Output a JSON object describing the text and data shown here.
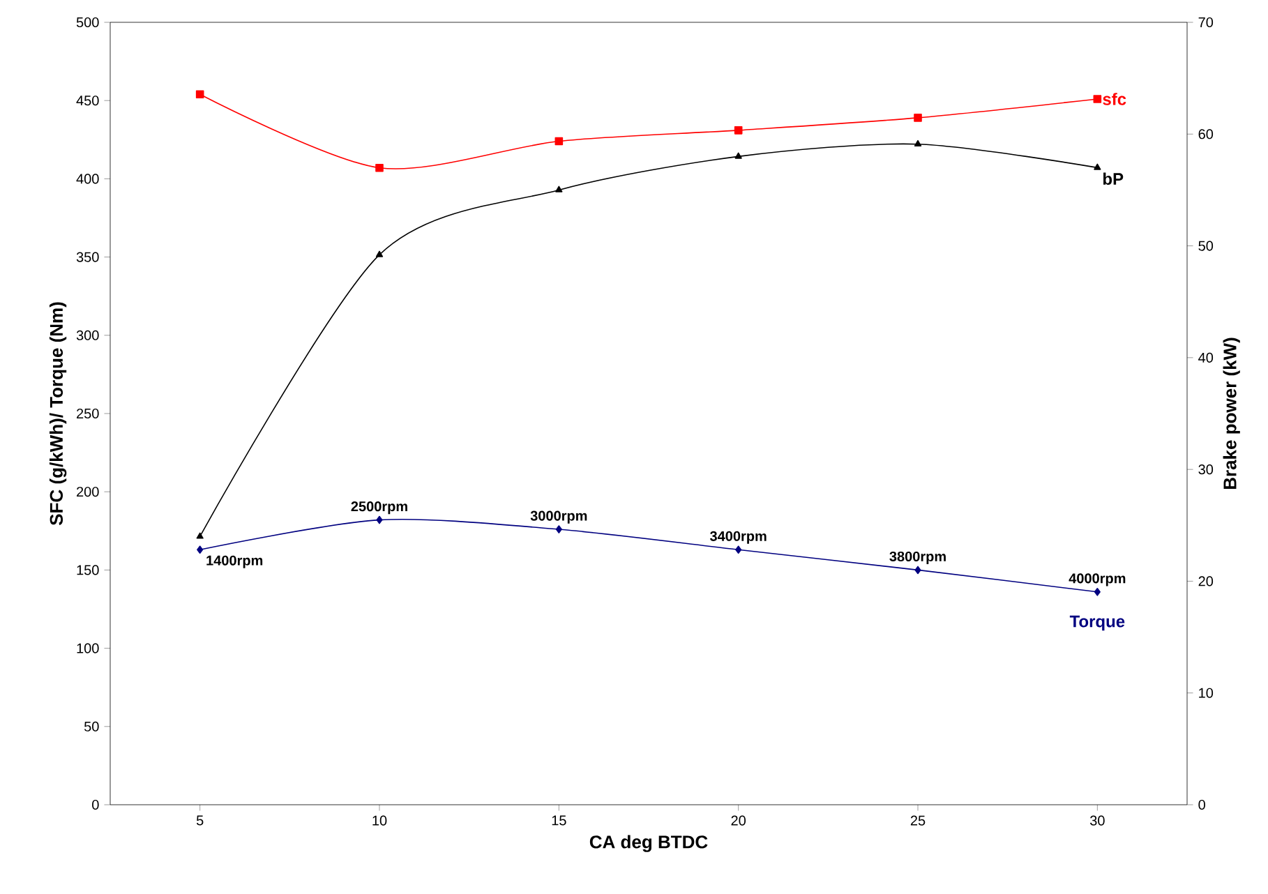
{
  "chart_data": {
    "type": "line",
    "xlabel": "CA deg BTDC",
    "ylabel": "SFC (g/kWh)/ Torque (Nm)",
    "y2label": "Brake power (kW)",
    "x": [
      5,
      10,
      15,
      20,
      25,
      30
    ],
    "xlim": [
      2.5,
      32.5
    ],
    "xticks": [
      5,
      10,
      15,
      20,
      25,
      30
    ],
    "ylim": [
      0,
      500
    ],
    "yticks": [
      0,
      50,
      100,
      150,
      200,
      250,
      300,
      350,
      400,
      450,
      500
    ],
    "y2lim": [
      0,
      70
    ],
    "y2ticks": [
      0,
      10,
      20,
      30,
      40,
      50,
      60,
      70
    ],
    "grid": false,
    "series": [
      {
        "name": "sfc",
        "color": "#ff0000",
        "marker": "square",
        "values": [
          454,
          407,
          424,
          431,
          439,
          451
        ]
      },
      {
        "name": "bP",
        "color": "#000000",
        "marker": "triangle",
        "axis": "y2",
        "values": [
          24.0,
          49.2,
          55.0,
          58.0,
          59.1,
          57.0
        ]
      },
      {
        "name": "Torque",
        "color": "#000080",
        "marker": "diamond",
        "values": [
          163,
          182,
          176,
          163,
          150,
          136
        ]
      }
    ],
    "annotations": [
      {
        "text": "1400rpm",
        "x": 5,
        "y": 163
      },
      {
        "text": "2500rpm",
        "x": 10,
        "y": 182
      },
      {
        "text": "3000rpm",
        "x": 15,
        "y": 176
      },
      {
        "text": "3400rpm",
        "x": 20,
        "y": 163
      },
      {
        "text": "3800rpm",
        "x": 25,
        "y": 150
      },
      {
        "text": "4000rpm",
        "x": 30,
        "y": 136
      }
    ]
  }
}
